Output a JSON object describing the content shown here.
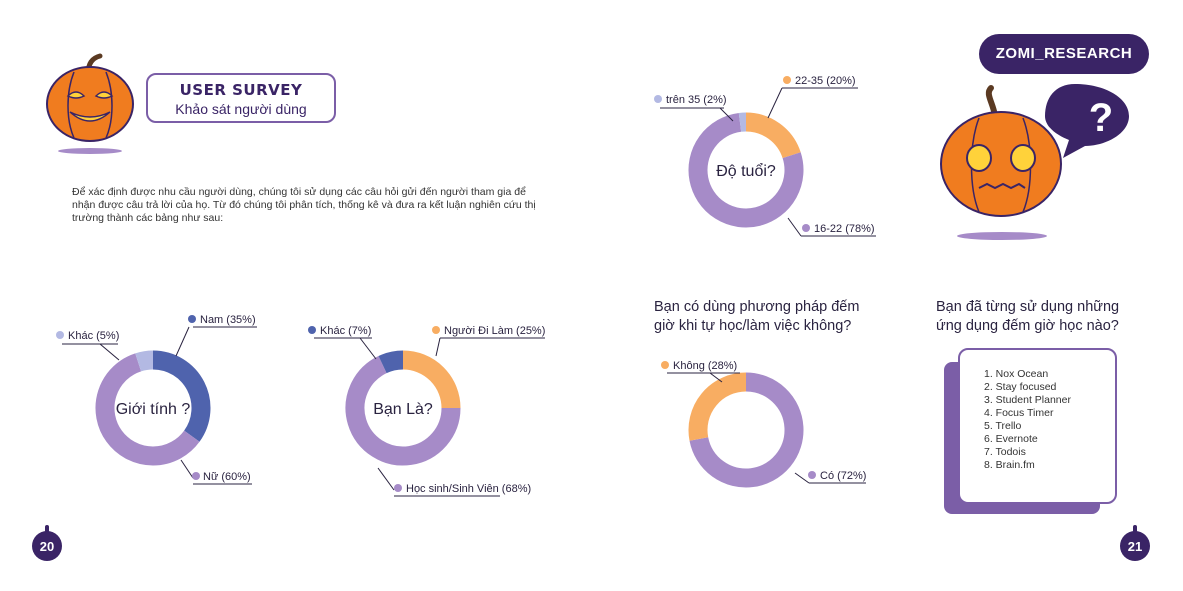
{
  "header": {
    "title_en": "USER SURVEY",
    "title_vi": "Khảo sát người dùng",
    "brand": "ZOMI_RESEARCH"
  },
  "intro_text": "Để xác định được nhu cầu người dùng, chúng tôi sử dụng các câu hỏi gửi đến người tham gia để nhận được câu trả lời của họ. Từ đó chúng tôi phân tích, thống kê và đưa ra kết luận nghiên cứu thị trường thành các bảng như sau:",
  "questions": {
    "timer_method": "Bạn có dùng phương pháp đếm giờ khi tự học/làm việc không?",
    "apps_used": "Bạn đã từng sử dụng những ứng dụng đếm giờ học nào?"
  },
  "apps_list": [
    "1. Nox Ocean",
    "2. Stay focused",
    "3. Student Planner",
    "4. Focus Timer",
    "5. Trello",
    "6. Evernote",
    "7. Todois",
    "8. Brain.fm"
  ],
  "page_numbers": {
    "left": "20",
    "right": "21"
  },
  "colors": {
    "purple_main": "#a68bc8",
    "blue": "#4f63ad",
    "orange": "#f8ad62",
    "light_blue": "#b3b9e3",
    "dark_purple": "#3a2466",
    "pumpkin": "#f07c1f"
  },
  "icons": [
    "pumpkin-smiling-icon",
    "pumpkin-scared-icon",
    "question-bubble-icon"
  ],
  "chart_data": [
    {
      "type": "pie",
      "title": "Giới tính ?",
      "slices": [
        {
          "label": "Nam (35%)",
          "value": 35,
          "color": "#4f63ad"
        },
        {
          "label": "Nữ (60%)",
          "value": 60,
          "color": "#a68bc8"
        },
        {
          "label": "Khác (5%)",
          "value": 5,
          "color": "#b3b9e3"
        }
      ]
    },
    {
      "type": "pie",
      "title": "Bạn Là?",
      "slices": [
        {
          "label": "Người Đi Làm (25%)",
          "value": 25,
          "color": "#f8ad62"
        },
        {
          "label": "Học sinh/Sinh Viên (68%)",
          "value": 68,
          "color": "#a68bc8"
        },
        {
          "label": "Khác (7%)",
          "value": 7,
          "color": "#4f63ad"
        }
      ]
    },
    {
      "type": "pie",
      "title": "Độ tuổi?",
      "slices": [
        {
          "label": "22-35 (20%)",
          "value": 20,
          "color": "#f8ad62"
        },
        {
          "label": "16-22 (78%)",
          "value": 78,
          "color": "#a68bc8"
        },
        {
          "label": "trên 35 (2%)",
          "value": 2,
          "color": "#b3b9e3"
        }
      ]
    },
    {
      "type": "pie",
      "title": "",
      "slices": [
        {
          "label": "Có (72%)",
          "value": 72,
          "color": "#a68bc8"
        },
        {
          "label": "Không (28%)",
          "value": 28,
          "color": "#f8ad62"
        }
      ]
    }
  ]
}
